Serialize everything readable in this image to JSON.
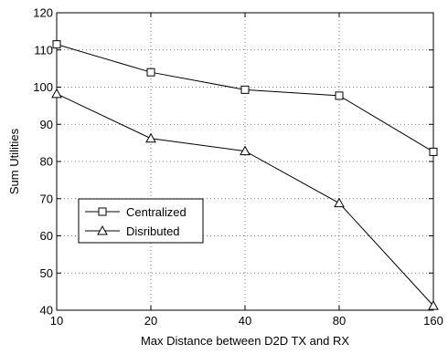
{
  "chart_data": {
    "type": "line",
    "title": "",
    "xlabel": "Max Distance between D2D TX and RX",
    "ylabel": "Sum Utilities",
    "categories": [
      "10",
      "20",
      "40",
      "80",
      "160"
    ],
    "ylim": [
      40,
      120
    ],
    "yticks": [
      40,
      50,
      60,
      70,
      80,
      90,
      100,
      110,
      120
    ],
    "grid": true,
    "legend_position": "lower-left",
    "series": [
      {
        "name": "Centralized",
        "marker": "square",
        "color": "#000000",
        "values": [
          111.5,
          104.0,
          99.3,
          97.7,
          82.6
        ]
      },
      {
        "name": "Disributed",
        "marker": "triangle",
        "color": "#000000",
        "values": [
          98.2,
          86.2,
          82.8,
          68.8,
          41.2
        ]
      }
    ]
  }
}
